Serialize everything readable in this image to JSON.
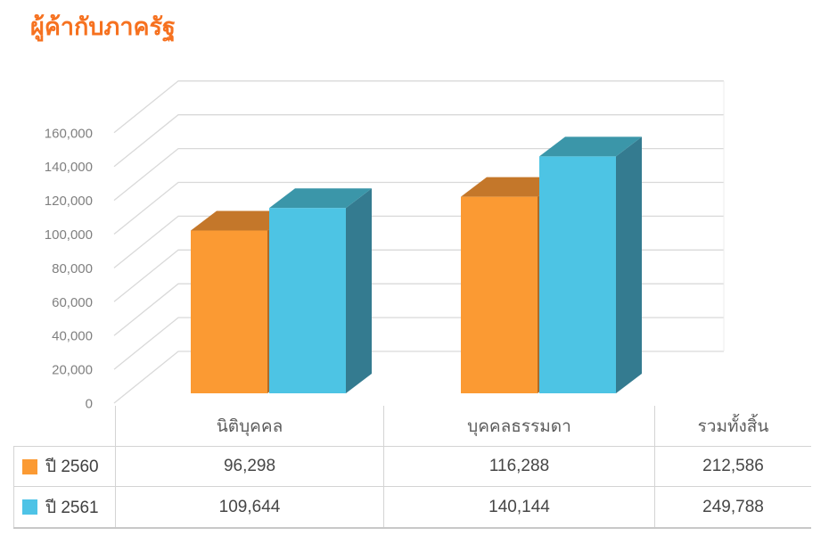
{
  "title": "ผู้ค้ากับภาครัฐ",
  "colors": {
    "title": "#F6711F",
    "grid_line": "#D9D9D9",
    "back_wall_edge": "#EDEDED",
    "tick_label": "#808080",
    "table_border": "#D4D4D4",
    "table_bottom_border": "#C8C8C8",
    "header_text": "#5C5C5C",
    "value_text": "#464646",
    "legend_text": "#3F3F3F"
  },
  "chart_data": {
    "type": "bar",
    "projection": "3d",
    "title": "ผู้ค้ากับภาครัฐ",
    "categories": [
      "นิติบุคคล",
      "บุคคลธรรมดา"
    ],
    "series": [
      {
        "name": "ปี 2560",
        "values": [
          96298,
          116288
        ],
        "color_front": "#FB9A33",
        "color_top": "#C4772A",
        "color_side": "#B06A25"
      },
      {
        "name": "ปี 2561",
        "values": [
          109644,
          140144
        ],
        "color_front": "#4DC4E4",
        "color_top": "#3B96A9",
        "color_side": "#347B90"
      }
    ],
    "totals": {
      "label": "รวมทั้งสิ้น",
      "values": [
        212586,
        249788
      ]
    },
    "xlabel": "",
    "ylabel": "",
    "ylim": [
      0,
      160000
    ],
    "ytick_step": 20000,
    "ytick_labels": [
      "0",
      "20,000",
      "40,000",
      "60,000",
      "80,000",
      "100,000",
      "120,000",
      "140,000",
      "160,000"
    ],
    "grid": true,
    "legend_position": "table-below"
  },
  "table": {
    "columns": [
      "นิติบุคคล",
      "บุคคลธรรมดา",
      "รวมทั้งสิ้น"
    ],
    "rows": [
      {
        "legend": "ปี 2560",
        "swatch": "#FB9A33",
        "cells": [
          "96,298",
          "116,288",
          "212,586"
        ]
      },
      {
        "legend": "ปี 2561",
        "swatch": "#4EC3E6",
        "cells": [
          "109,644",
          "140,144",
          "249,788"
        ]
      }
    ]
  }
}
